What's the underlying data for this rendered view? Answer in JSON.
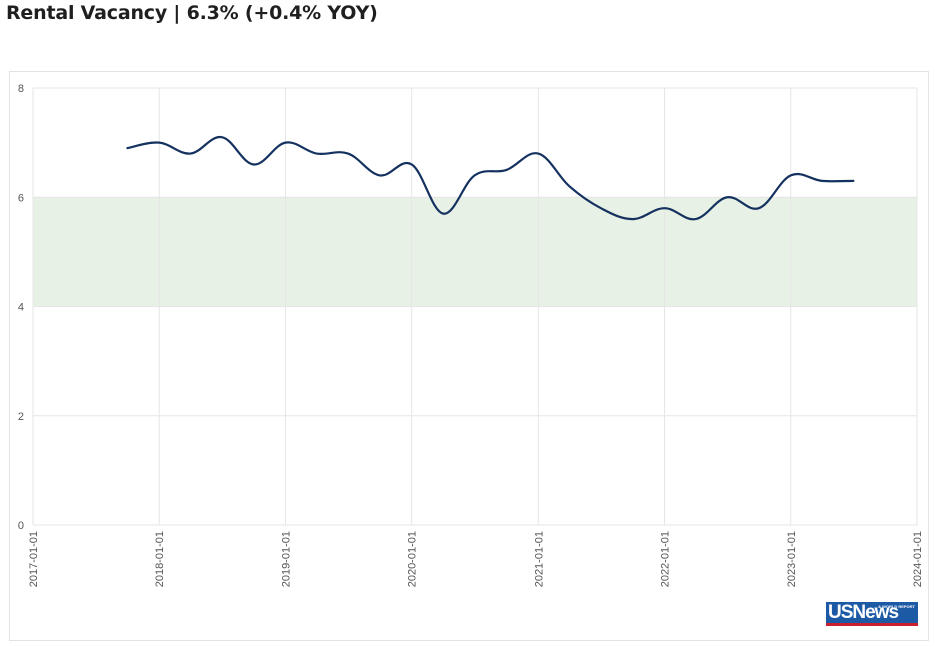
{
  "title": "Rental Vacancy | 6.3% (+0.4% YOY)",
  "logo": {
    "main": "USNews",
    "small": "& WORLD REPORT"
  },
  "colors": {
    "line": "#14315f",
    "band": "#e8f1e6",
    "grid": "#e6e6e6",
    "axis_text": "#555555"
  },
  "chart_data": {
    "type": "line",
    "title": "Rental Vacancy | 6.3% (+0.4% YOY)",
    "xlabel": "",
    "ylabel": "",
    "xlim": [
      "2017-01-01",
      "2024-01-01"
    ],
    "ylim": [
      0,
      8
    ],
    "x_ticks": [
      "2017-01-01",
      "2018-01-01",
      "2019-01-01",
      "2020-01-01",
      "2021-01-01",
      "2022-01-01",
      "2023-01-01",
      "2024-01-01"
    ],
    "y_ticks": [
      0,
      2,
      4,
      6,
      8
    ],
    "grid": true,
    "shaded_band": {
      "from": 4,
      "to": 6
    },
    "series": [
      {
        "x": [
          "2017-10-01",
          "2018-01-01",
          "2018-04-01",
          "2018-07-01",
          "2018-10-01",
          "2019-01-01",
          "2019-04-01",
          "2019-07-01",
          "2019-10-01",
          "2020-01-01",
          "2020-04-01",
          "2020-07-01",
          "2020-10-01",
          "2021-01-01",
          "2021-04-01",
          "2021-07-01",
          "2021-10-01",
          "2022-01-01",
          "2022-04-01",
          "2022-07-01",
          "2022-10-01",
          "2023-01-01",
          "2023-04-01",
          "2023-07-01"
        ],
        "values": [
          6.9,
          7.0,
          6.8,
          7.1,
          6.6,
          7.0,
          6.8,
          6.8,
          6.4,
          6.6,
          5.7,
          6.4,
          6.5,
          6.8,
          6.2,
          5.8,
          5.6,
          5.8,
          5.6,
          6.0,
          5.8,
          6.4,
          6.3,
          6.3
        ]
      }
    ]
  }
}
